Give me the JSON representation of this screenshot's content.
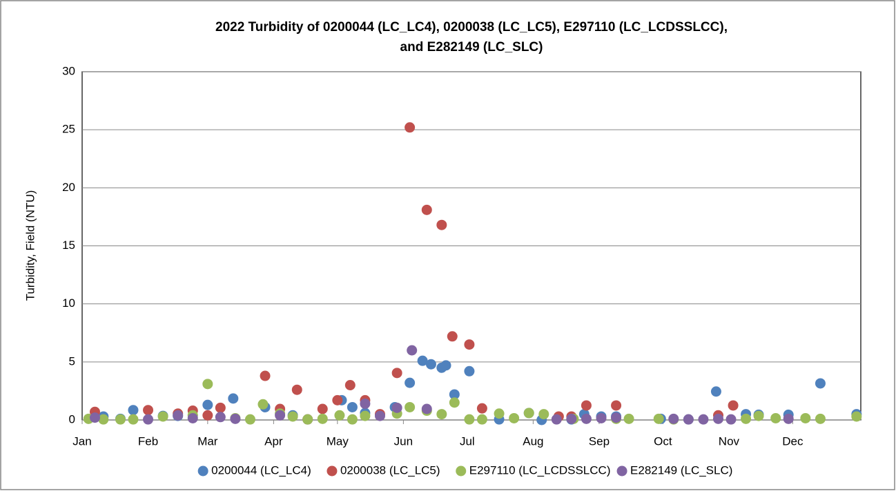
{
  "chart_data": {
    "type": "scatter",
    "title": [
      "2022 Turbidity of 0200044 (LC_LC4), 0200038 (LC_LC5), E297110 (LC_LCDSSLCC),",
      "and E282149 (LC_SLC)"
    ],
    "y_label": "Turbidity, Field (NTU)",
    "xlim": [
      1,
      367
    ],
    "xticks": [
      {
        "value": 1,
        "label": "Jan"
      },
      {
        "value": 32,
        "label": "Feb"
      },
      {
        "value": 60,
        "label": "Mar"
      },
      {
        "value": 91,
        "label": "Apr"
      },
      {
        "value": 121,
        "label": "May"
      },
      {
        "value": 152,
        "label": "Jun"
      },
      {
        "value": 182,
        "label": "Jul"
      },
      {
        "value": 213,
        "label": "Aug"
      },
      {
        "value": 244,
        "label": "Sep"
      },
      {
        "value": 274,
        "label": "Oct"
      },
      {
        "value": 305,
        "label": "Nov"
      },
      {
        "value": 335,
        "label": "Dec"
      }
    ],
    "ylim": [
      0,
      30
    ],
    "yticks": [
      0,
      5,
      10,
      15,
      20,
      25,
      30
    ],
    "grid": true,
    "legend": "bottom",
    "series": [
      {
        "name": "0200044 (LC_LC4)",
        "color": "#4f81bd",
        "x": [
          11,
          19,
          25,
          39,
          46,
          60,
          72,
          87,
          100,
          107,
          123,
          128,
          134,
          148,
          155,
          161,
          165,
          170,
          172,
          176,
          183,
          197,
          211,
          217,
          231,
          237,
          245,
          252,
          273,
          286,
          299,
          313,
          319,
          333,
          348,
          365
        ],
        "values": [
          0.3,
          0.1,
          0.85,
          0.35,
          0.35,
          1.3,
          1.85,
          1.1,
          0.4,
          0.05,
          1.7,
          1.1,
          0.6,
          1.1,
          3.2,
          5.1,
          4.8,
          4.5,
          4.7,
          2.2,
          4.2,
          0.05,
          0.6,
          0,
          0.05,
          0.5,
          0.3,
          0.3,
          0.1,
          0.05,
          2.45,
          0.5,
          0.45,
          0.45,
          3.15,
          0.5
        ]
      },
      {
        "name": "0200038 (LC_LC5)",
        "color": "#c0504d",
        "x": [
          7,
          32,
          46,
          53,
          60,
          66,
          87,
          94,
          102,
          107,
          114,
          121,
          127,
          134,
          141,
          149,
          155,
          163,
          170,
          175,
          183,
          189,
          225,
          231,
          238,
          252,
          300,
          307
        ],
        "values": [
          0.7,
          0.85,
          0.55,
          0.8,
          0.4,
          1.05,
          3.8,
          0.95,
          2.6,
          0.05,
          0.95,
          1.7,
          3.0,
          1.7,
          0.5,
          4.05,
          25.2,
          18.1,
          16.8,
          7.2,
          6.5,
          1.0,
          0.3,
          0.3,
          1.25,
          1.25,
          0.4,
          1.25
        ]
      },
      {
        "name": "E297110 (LC_LCDSSLCC)",
        "color": "#9bbb59",
        "x": [
          4,
          11,
          19,
          25,
          39,
          53,
          60,
          73,
          80,
          86,
          94,
          100,
          107,
          114,
          122,
          128,
          134,
          149,
          155,
          163,
          170,
          176,
          183,
          189,
          197,
          204,
          211,
          218,
          232,
          252,
          258,
          272,
          279,
          313,
          319,
          327,
          341,
          348,
          365
        ],
        "values": [
          0.1,
          0.05,
          0.05,
          0.05,
          0.3,
          0.4,
          3.1,
          0.15,
          0.05,
          1.35,
          0.55,
          0.3,
          0.05,
          0.1,
          0.4,
          0.05,
          0.35,
          0.55,
          1.1,
          0.8,
          0.5,
          1.5,
          0.05,
          0.05,
          0.55,
          0.15,
          0.6,
          0.5,
          0.1,
          0.1,
          0.1,
          0.1,
          0.05,
          0.1,
          0.35,
          0.15,
          0.15,
          0.1,
          0.3
        ]
      },
      {
        "name": "E282149 (LC_SLC)",
        "color": "#8064a2",
        "x": [
          7,
          32,
          46,
          53,
          66,
          73,
          94,
          134,
          141,
          149,
          156,
          163,
          224,
          231,
          238,
          245,
          252,
          279,
          286,
          293,
          300,
          306,
          333
        ],
        "values": [
          0.2,
          0.05,
          0.4,
          0.15,
          0.25,
          0.1,
          0.4,
          1.4,
          0.35,
          1.05,
          6.0,
          0.95,
          0.05,
          0.1,
          0.1,
          0.15,
          0.2,
          0.1,
          0.05,
          0.05,
          0.1,
          0.05,
          0.1
        ]
      }
    ]
  }
}
